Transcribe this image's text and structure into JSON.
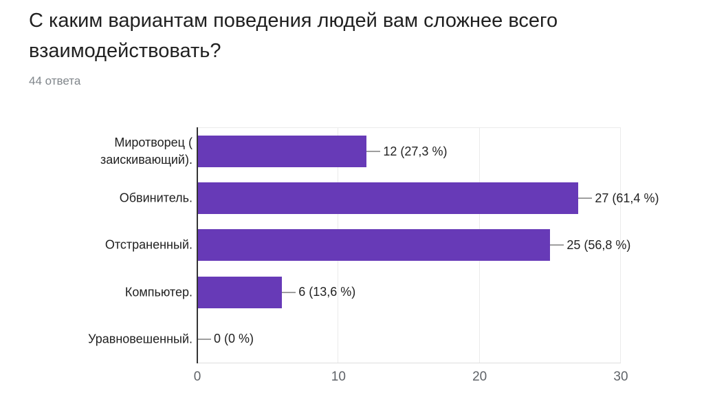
{
  "header": {
    "title": "С каким вариантам поведения людей вам сложнее всего взаимодействовать?",
    "responses_count": "44 ответа"
  },
  "chart_data": {
    "type": "bar",
    "orientation": "horizontal",
    "title": "С каким вариантам поведения людей вам сложнее всего взаимодействовать?",
    "subtitle": "44 ответа",
    "categories": [
      "Миротворец ( заискивающий).",
      "Обвинитель.",
      "Отстраненный.",
      "Компьютер.",
      "Уравновешенный."
    ],
    "values": [
      12,
      27,
      25,
      6,
      0
    ],
    "value_labels": [
      "12 (27,3 %)",
      "27 (61,4 %)",
      "25 (56,8 %)",
      "6 (13,6 %)",
      "0 (0 %)"
    ],
    "percentages": [
      27.3,
      61.4,
      56.8,
      13.6,
      0
    ],
    "total_responses": 44,
    "xlim": [
      0,
      30
    ],
    "xticks": [
      0,
      10,
      20,
      30
    ],
    "grid": true,
    "legend": "none",
    "bar_color": "#673ab7",
    "axis_color": "#333333",
    "gridline_color": "#ebebeb"
  }
}
